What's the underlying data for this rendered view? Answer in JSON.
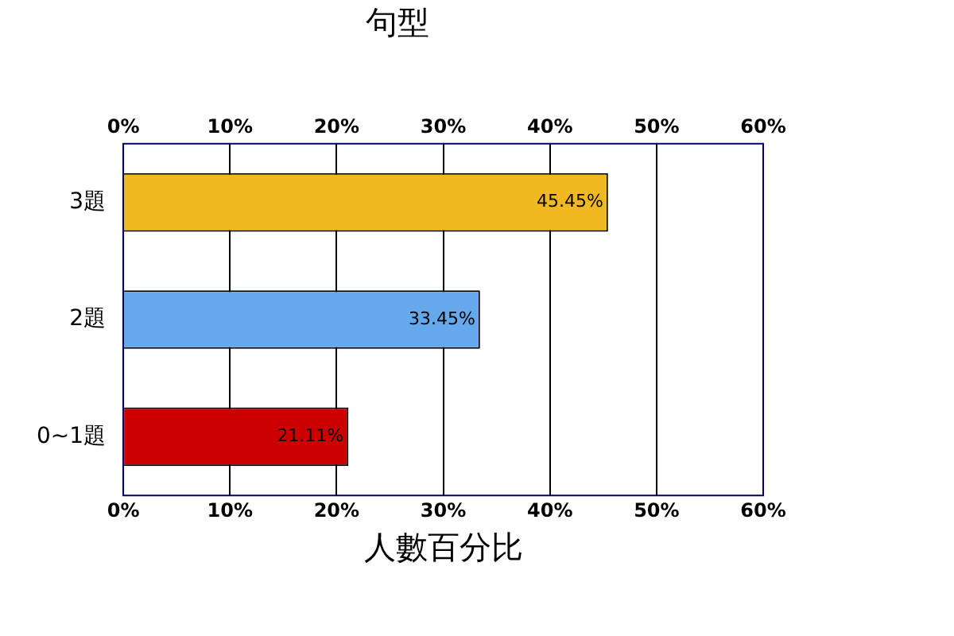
{
  "chart_data": {
    "type": "bar",
    "orientation": "horizontal",
    "title": "句型",
    "xlabel": "人數百分比",
    "categories": [
      "3題",
      "2題",
      "0~1題"
    ],
    "values": [
      45.45,
      33.45,
      21.11
    ],
    "colors": [
      "#f0b922",
      "#65a9ec",
      "#cc0000"
    ],
    "value_labels": [
      "45.45%",
      "33.45%",
      "21.11%"
    ],
    "xlim": [
      0,
      60
    ],
    "xticks": [
      {
        "value": 0,
        "label": "0%"
      },
      {
        "value": 10,
        "label": "10%"
      },
      {
        "value": 20,
        "label": "20%"
      },
      {
        "value": 30,
        "label": "30%"
      },
      {
        "value": 40,
        "label": "40%"
      },
      {
        "value": 50,
        "label": "50%"
      },
      {
        "value": 60,
        "label": "60%"
      }
    ],
    "x2lim": [
      0,
      60
    ],
    "x2ticks": [
      {
        "value": 0,
        "label": "0%"
      },
      {
        "value": 10,
        "label": "10%"
      },
      {
        "value": 20,
        "label": "20%"
      },
      {
        "value": 30,
        "label": "30%"
      },
      {
        "value": 40,
        "label": "40%"
      },
      {
        "value": 50,
        "label": "50%"
      },
      {
        "value": 60,
        "label": "60%"
      }
    ],
    "grid": "x",
    "legend": false
  }
}
